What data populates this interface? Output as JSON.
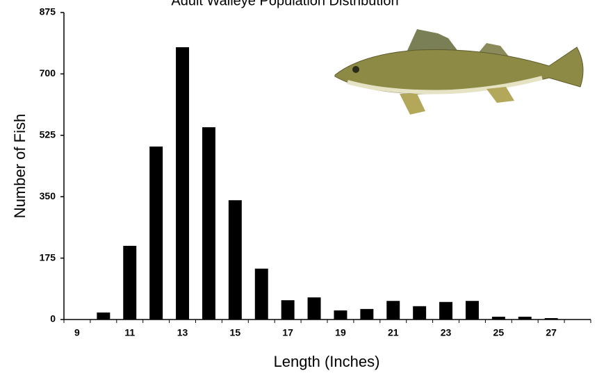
{
  "chart_data": {
    "type": "bar",
    "title": "Adult Walleye Population Distribution",
    "x_label": "Length (Inches)",
    "y_label": "Number of Fish",
    "categories": [
      "9",
      null,
      "11",
      null,
      "13",
      null,
      "15",
      null,
      "17",
      null,
      "19",
      null,
      "21",
      null,
      "23",
      null,
      "25",
      null,
      "27",
      null
    ],
    "values": [
      0,
      20,
      210,
      493,
      776,
      548,
      340,
      145,
      55,
      63,
      26,
      30,
      53,
      38,
      50,
      53,
      8,
      8,
      4,
      0
    ],
    "color": "#000000",
    "ylim": [
      0,
      875
    ],
    "yticks": [
      0,
      175,
      350,
      525,
      700,
      875
    ],
    "grid": false
  }
}
